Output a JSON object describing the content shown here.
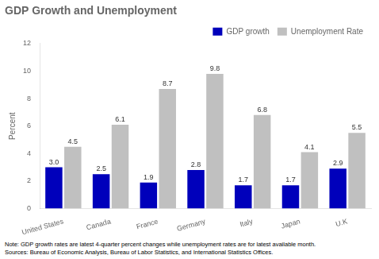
{
  "chart_data": {
    "type": "bar",
    "title": "GDP Growth and Unemployment",
    "ylabel": "Percent",
    "categories": [
      "United States",
      "Canada",
      "France",
      "Germany",
      "Italy",
      "Japan",
      "U.K"
    ],
    "series": [
      {
        "name": "GDP growth",
        "color": "#0000bb",
        "values": [
          3.0,
          2.5,
          1.9,
          2.8,
          1.7,
          1.7,
          2.9
        ],
        "value_labels": [
          "3.0",
          "2.5",
          "1.9",
          "2.8",
          "1.7",
          "1.7",
          "2.9"
        ]
      },
      {
        "name": "Unemployment Rate",
        "color": "#c0c0c0",
        "values": [
          4.5,
          6.1,
          8.7,
          9.8,
          6.8,
          4.1,
          5.5
        ],
        "value_labels": [
          "4.5",
          "6.1",
          "8.7",
          "9.8",
          "6.8",
          "4.1",
          "5.5"
        ]
      }
    ],
    "ylim": [
      0,
      12
    ],
    "yticks": [
      0,
      2,
      4,
      6,
      8,
      10,
      12
    ],
    "grid": false,
    "legend": "upper right",
    "data_labels": true,
    "annotations": [
      "Note: GDP growth rates are latest 4-quarter percent changes while unemployment rates are for latest available month.",
      "Sources: Bureau of Economic Analysis, Bureau of Labor Statistics, and International Statistics Offices."
    ]
  }
}
